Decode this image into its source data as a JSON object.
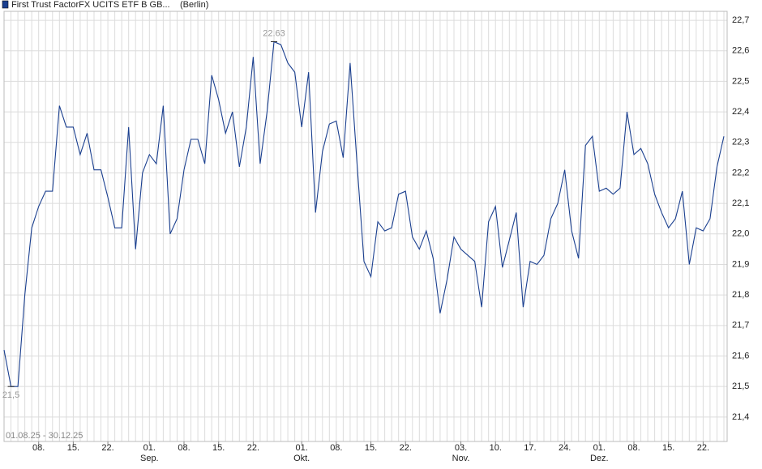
{
  "chart_data": {
    "type": "line",
    "exchange": "(Berlin)",
    "period": "01.08.25 - 30.12.25",
    "categories": [
      "01.08.25",
      "04.08.25",
      "05.08.25",
      "06.08.25",
      "07.08.25",
      "08.08.25",
      "11.08.25",
      "12.08.25",
      "13.08.25",
      "14.08.25",
      "15.08.25",
      "18.08.25",
      "19.08.25",
      "20.08.25",
      "21.08.25",
      "22.08.25",
      "25.08.25",
      "26.08.25",
      "27.08.25",
      "28.08.25",
      "29.08.25",
      "01.09.25",
      "02.09.25",
      "03.09.25",
      "04.09.25",
      "05.09.25",
      "08.09.25",
      "09.09.25",
      "10.09.25",
      "11.09.25",
      "12.09.25",
      "15.09.25",
      "16.09.25",
      "17.09.25",
      "18.09.25",
      "19.09.25",
      "22.09.25",
      "23.09.25",
      "24.09.25",
      "25.09.25",
      "26.09.25",
      "29.09.25",
      "30.09.25",
      "01.10.25",
      "02.10.25",
      "03.10.25",
      "06.10.25",
      "07.10.25",
      "08.10.25",
      "09.10.25",
      "10.10.25",
      "13.10.25",
      "14.10.25",
      "15.10.25",
      "16.10.25",
      "17.10.25",
      "20.10.25",
      "21.10.25",
      "22.10.25",
      "23.10.25",
      "24.10.25",
      "27.10.25",
      "28.10.25",
      "29.10.25",
      "30.10.25",
      "31.10.25",
      "03.11.25",
      "04.11.25",
      "05.11.25",
      "06.11.25",
      "07.11.25",
      "10.11.25",
      "11.11.25",
      "12.11.25",
      "13.11.25",
      "14.11.25",
      "17.11.25",
      "18.11.25",
      "19.11.25",
      "20.11.25",
      "21.11.25",
      "24.11.25",
      "25.11.25",
      "26.11.25",
      "27.11.25",
      "28.11.25",
      "01.12.25",
      "02.12.25",
      "03.12.25",
      "04.12.25",
      "05.12.25",
      "08.12.25",
      "09.12.25",
      "10.12.25",
      "11.12.25",
      "12.12.25",
      "15.12.25",
      "16.12.25",
      "17.12.25",
      "18.12.25",
      "19.12.25",
      "22.12.25",
      "23.12.25",
      "29.12.25",
      "30.12.25"
    ],
    "series": [
      {
        "name": "First Trust FactorFX UCITS ETF B GB...",
        "color": "#1a3f8f",
        "values": [
          21.62,
          21.5,
          21.5,
          21.8,
          22.02,
          22.09,
          22.14,
          22.14,
          22.42,
          22.35,
          22.35,
          22.26,
          22.33,
          22.21,
          22.21,
          22.12,
          22.02,
          22.02,
          22.35,
          21.95,
          22.2,
          22.26,
          22.23,
          22.42,
          22.0,
          22.05,
          22.21,
          22.31,
          22.31,
          22.23,
          22.52,
          22.44,
          22.33,
          22.4,
          22.22,
          22.35,
          22.58,
          22.23,
          22.4,
          22.63,
          22.62,
          22.56,
          22.53,
          22.35,
          22.53,
          22.07,
          22.27,
          22.36,
          22.37,
          22.25,
          22.56,
          22.23,
          21.91,
          21.86,
          22.04,
          22.01,
          22.02,
          22.13,
          22.14,
          21.99,
          21.95,
          22.01,
          21.92,
          21.74,
          21.85,
          21.99,
          21.95,
          21.93,
          21.91,
          21.76,
          22.04,
          22.09,
          21.89,
          21.98,
          22.07,
          21.76,
          21.91,
          21.9,
          21.93,
          22.05,
          22.1,
          22.21,
          22.01,
          21.92,
          22.29,
          22.32,
          22.14,
          22.15,
          22.13,
          22.15,
          22.4,
          22.26,
          22.28,
          22.23,
          22.13,
          22.07,
          22.02,
          22.05,
          22.14,
          21.9,
          22.02,
          22.01,
          22.05,
          22.22,
          22.32
        ]
      }
    ],
    "annotations": [
      {
        "x": "25.09.25",
        "y": 22.63,
        "text": "22.63"
      },
      {
        "x": "04.08.25",
        "y": 21.5,
        "text": "21,5"
      }
    ],
    "ylim": [
      21.32,
      22.74
    ],
    "yticks": [
      {
        "value": 21.4,
        "label": "21,4"
      },
      {
        "value": 21.5,
        "label": "21,5"
      },
      {
        "value": 21.6,
        "label": "21,6"
      },
      {
        "value": 21.7,
        "label": "21,7"
      },
      {
        "value": 21.8,
        "label": "21,8"
      },
      {
        "value": 21.9,
        "label": "21,9"
      },
      {
        "value": 22.0,
        "label": "22,0"
      },
      {
        "value": 22.1,
        "label": "22,1"
      },
      {
        "value": 22.2,
        "label": "22,2"
      },
      {
        "value": 22.3,
        "label": "22,3"
      },
      {
        "value": 22.4,
        "label": "22,4"
      },
      {
        "value": 22.5,
        "label": "22,5"
      },
      {
        "value": 22.6,
        "label": "22,6"
      },
      {
        "value": 22.7,
        "label": "22,7"
      }
    ],
    "xticks": [
      {
        "value": "08.08.25",
        "label": "08."
      },
      {
        "value": "15.08.25",
        "label": "15."
      },
      {
        "value": "22.08.25",
        "label": "22."
      },
      {
        "value": "01.09.25",
        "label": "01."
      },
      {
        "value": "08.09.25",
        "label": "08."
      },
      {
        "value": "15.09.25",
        "label": "15."
      },
      {
        "value": "22.09.25",
        "label": "22."
      },
      {
        "value": "01.10.25",
        "label": "01."
      },
      {
        "value": "08.10.25",
        "label": "08."
      },
      {
        "value": "15.10.25",
        "label": "15."
      },
      {
        "value": "22.10.25",
        "label": "22."
      },
      {
        "value": "03.11.25",
        "label": "03."
      },
      {
        "value": "10.11.25",
        "label": "10."
      },
      {
        "value": "17.11.25",
        "label": "17."
      },
      {
        "value": "24.11.25",
        "label": "24."
      },
      {
        "value": "01.12.25",
        "label": "01."
      },
      {
        "value": "08.12.25",
        "label": "08."
      },
      {
        "value": "15.12.25",
        "label": "15."
      },
      {
        "value": "22.12.25",
        "label": "22."
      }
    ],
    "month_labels": [
      {
        "value": "01.09.25",
        "label": "Sep."
      },
      {
        "value": "01.10.25",
        "label": "Okt."
      },
      {
        "value": "03.11.25",
        "label": "Nov."
      },
      {
        "value": "01.12.25",
        "label": "Dez."
      }
    ],
    "grid": true
  }
}
